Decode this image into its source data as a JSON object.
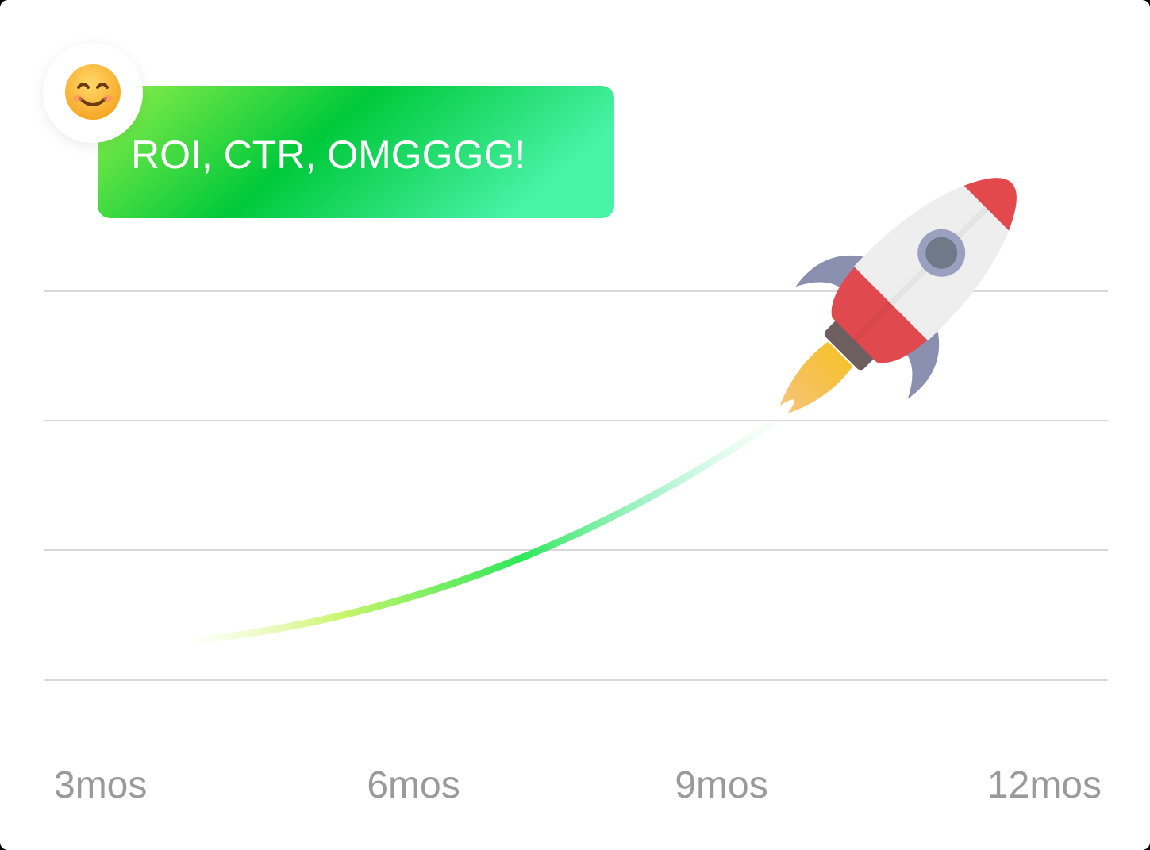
{
  "bubble": {
    "text": "ROI, CTR, OMGGGG!"
  },
  "axis_labels": [
    "3mos",
    "6mos",
    "9mos",
    "12mos"
  ]
}
